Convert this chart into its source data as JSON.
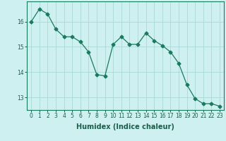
{
  "x": [
    0,
    1,
    2,
    3,
    4,
    5,
    6,
    7,
    8,
    9,
    10,
    11,
    12,
    13,
    14,
    15,
    16,
    17,
    18,
    19,
    20,
    21,
    22,
    23
  ],
  "y": [
    16.0,
    16.5,
    16.3,
    15.7,
    15.4,
    15.4,
    15.2,
    14.8,
    13.9,
    13.85,
    15.1,
    15.4,
    15.1,
    15.1,
    15.55,
    15.25,
    15.05,
    14.8,
    14.35,
    13.5,
    12.95,
    12.75,
    12.75,
    12.65
  ],
  "line_color": "#1a7a5e",
  "marker": "D",
  "marker_size": 2.5,
  "background_color": "#cff0f0",
  "grid_color": "#aad8d8",
  "xlabel": "Humidex (Indice chaleur)",
  "xlim": [
    -0.5,
    23.5
  ],
  "ylim": [
    12.5,
    16.8
  ],
  "yticks": [
    13,
    14,
    15,
    16
  ],
  "xticks": [
    0,
    1,
    2,
    3,
    4,
    5,
    6,
    7,
    8,
    9,
    10,
    11,
    12,
    13,
    14,
    15,
    16,
    17,
    18,
    19,
    20,
    21,
    22,
    23
  ],
  "tick_fontsize": 5.5,
  "xlabel_fontsize": 7.0,
  "line_width": 0.9,
  "fig_width": 3.2,
  "fig_height": 2.0,
  "dpi": 100
}
